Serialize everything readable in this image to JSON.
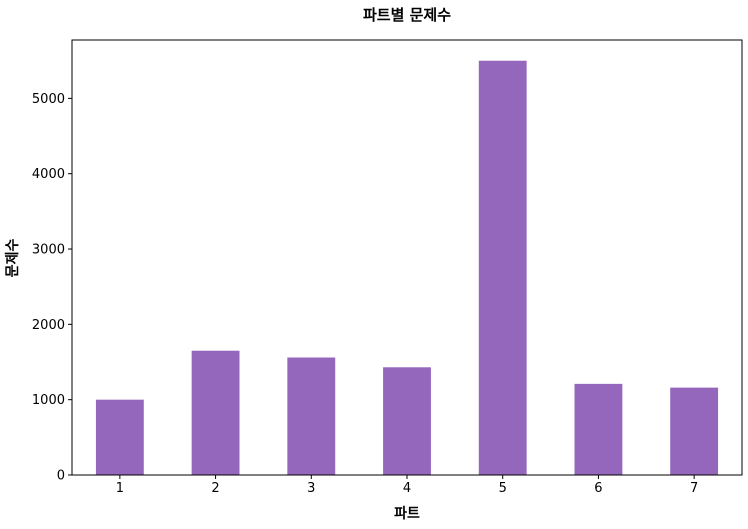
{
  "chart_data": {
    "type": "bar",
    "title": "파트별 문제수",
    "xlabel": "파트",
    "ylabel": "문제수",
    "categories": [
      "1",
      "2",
      "3",
      "4",
      "5",
      "6",
      "7"
    ],
    "values": [
      1000,
      1650,
      1560,
      1430,
      5500,
      1210,
      1160
    ],
    "yticks": [
      0,
      1000,
      2000,
      3000,
      4000,
      5000
    ],
    "ylim": [
      0,
      5775
    ],
    "bar_color": "#9467bd",
    "grid": false,
    "legend": "none"
  }
}
